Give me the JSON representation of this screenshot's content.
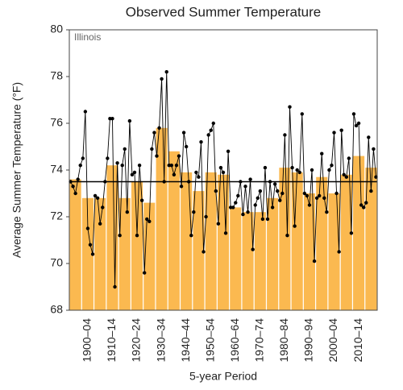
{
  "chart_data": {
    "type": "bar",
    "title": "Observed Summer Temperature",
    "annotation": "Illinois",
    "y_label": "Average Summer Temperature (°F)",
    "x_label": "5-year Period",
    "categories": [
      null,
      "1900–04",
      null,
      "1910–14",
      null,
      "1920–24",
      null,
      "1930–34",
      null,
      "1940–44",
      null,
      "1950–54",
      null,
      "1960–64",
      null,
      "1970–74",
      null,
      "1980–84",
      null,
      "1990–94",
      null,
      "2000–04",
      null,
      "2010–14",
      null
    ],
    "values": [
      73.6,
      72.8,
      72.8,
      74.2,
      72.8,
      73.5,
      72.6,
      75.8,
      74.8,
      73.9,
      73.1,
      73.9,
      73.8,
      72.4,
      72.2,
      72.2,
      72.8,
      74.1,
      73.9,
      73.0,
      73.7,
      73.0,
      73.8,
      74.6,
      74.1
    ],
    "color": "#fbb950",
    "annual": {
      "color": "#000000",
      "values": [
        73.5,
        73.3,
        73.0,
        73.6,
        74.2,
        74.5,
        76.5,
        71.5,
        70.8,
        70.4,
        72.9,
        72.8,
        71.7,
        72.4,
        73.5,
        74.5,
        76.2,
        76.2,
        69.0,
        74.3,
        71.2,
        74.2,
        74.9,
        72.2,
        76.1,
        73.8,
        73.9,
        71.2,
        74.2,
        72.7,
        69.6,
        71.9,
        71.8,
        74.9,
        75.6,
        74.6,
        75.8,
        77.9,
        73.5,
        78.2,
        74.2,
        74.2,
        73.8,
        74.2,
        74.6,
        73.3,
        75.6,
        75.0,
        73.5,
        71.2,
        72.2,
        73.9,
        73.7,
        75.2,
        70.5,
        72.0,
        75.5,
        75.7,
        76.0,
        73.1,
        71.7,
        74.1,
        73.9,
        71.3,
        74.8,
        72.4,
        72.4,
        72.6,
        72.9,
        73.5,
        72.1,
        73.3,
        72.2,
        73.6,
        70.6,
        72.5,
        72.8,
        73.1,
        71.9,
        74.1,
        71.9,
        73.5,
        72.4,
        73.4,
        73.1,
        72.7,
        73.0,
        75.5,
        71.2,
        76.7,
        74.1,
        71.6,
        74.0,
        73.9,
        76.4,
        73.0,
        72.9,
        72.5,
        74.0,
        70.1,
        72.8,
        72.9,
        74.7,
        72.8,
        72.2,
        74.0,
        74.2,
        75.6,
        73.0,
        70.5,
        75.7,
        73.8,
        73.7,
        74.5,
        71.3,
        76.4,
        75.9,
        76.0,
        72.5,
        72.4,
        72.6,
        75.4,
        73.1,
        74.9,
        73.7
      ]
    },
    "reference_line": 73.5,
    "ylim": [
      68,
      80
    ],
    "yticks": [
      68,
      70,
      72,
      74,
      76,
      78,
      80
    ]
  }
}
